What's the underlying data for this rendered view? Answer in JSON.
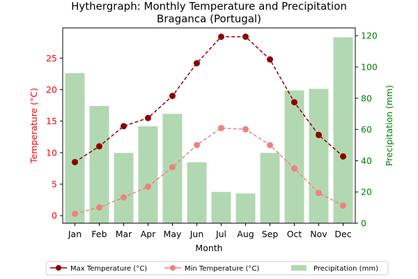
{
  "chart_data": {
    "type": "bar+line",
    "title": "Hythergraph: Monthly Temperature and Precipitation",
    "subtitle": "Braganca (Portugal)",
    "xlabel": "Month",
    "ylabel_left": "Temperature (°C)",
    "ylabel_right": "Precipitation (mm)",
    "categories": [
      "Jan",
      "Feb",
      "Mar",
      "Apr",
      "May",
      "Jun",
      "Jul",
      "Aug",
      "Sep",
      "Oct",
      "Nov",
      "Dec"
    ],
    "ylim_left": [
      -1.2,
      29.8
    ],
    "yticks_left": [
      "0",
      "5",
      "10",
      "15",
      "20",
      "25"
    ],
    "ylim_right": [
      0,
      125
    ],
    "yticks_right": [
      "0",
      "20",
      "40",
      "60",
      "80",
      "100",
      "120"
    ],
    "grid": false,
    "legend_position": "bottom",
    "series": [
      {
        "name": "Max Temperature (°C)",
        "kind": "line",
        "axis": "left",
        "color": "#8b0000",
        "linestyle": "dashed",
        "marker": "circle",
        "values": [
          8.5,
          11.0,
          14.2,
          15.5,
          19.0,
          24.2,
          28.4,
          28.4,
          24.8,
          18.0,
          12.8,
          9.4
        ]
      },
      {
        "name": "Min Temperature (°C)",
        "kind": "line",
        "axis": "left",
        "color": "#f08080",
        "linestyle": "dashed",
        "marker": "circle",
        "values": [
          0.3,
          1.3,
          2.9,
          4.6,
          7.7,
          11.2,
          13.9,
          13.7,
          11.2,
          7.5,
          3.6,
          1.6
        ]
      },
      {
        "name": "Precipitation (mm)",
        "kind": "bar",
        "axis": "right",
        "color": "#b2d8b2",
        "values": [
          96,
          75,
          45,
          62,
          70,
          39,
          20,
          19,
          45,
          85,
          86,
          119
        ]
      }
    ],
    "colors": {
      "left_axis": "#ff0000",
      "right_axis": "#008000",
      "text": "#000000"
    }
  }
}
